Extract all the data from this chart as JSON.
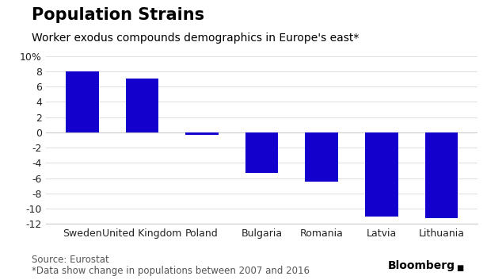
{
  "title": "Population Strains",
  "subtitle": "Worker exodus compounds demographics in Europe's east*",
  "categories": [
    "Sweden",
    "United Kingdom",
    "Poland",
    "Bulgaria",
    "Romania",
    "Latvia",
    "Lithuania"
  ],
  "values": [
    8.0,
    7.0,
    -0.3,
    -5.3,
    -6.5,
    -11.0,
    -11.2
  ],
  "bar_color": "#1400cc",
  "ylim": [
    -12,
    10
  ],
  "yticks": [
    10,
    8,
    6,
    4,
    2,
    0,
    -2,
    -4,
    -6,
    -8,
    -10,
    -12
  ],
  "ytick_labels": [
    "10%",
    "8",
    "6",
    "4",
    "2",
    "0",
    "-2",
    "-4",
    "-6",
    "-8",
    "-10",
    "-12"
  ],
  "source_line1": "Source: Eurostat",
  "source_line2": "*Data show change in populations between 2007 and 2016",
  "bloomberg_text": "Bloomberg",
  "background_color": "#ffffff",
  "title_fontsize": 15,
  "subtitle_fontsize": 10,
  "tick_fontsize": 9,
  "source_fontsize": 8.5,
  "bloomberg_fontsize": 10,
  "bar_width": 0.55,
  "grid_color": "#e0e0e0",
  "spine_color": "#cccccc",
  "text_color_dark": "#000000",
  "text_color_mid": "#222222",
  "text_color_light": "#555555"
}
